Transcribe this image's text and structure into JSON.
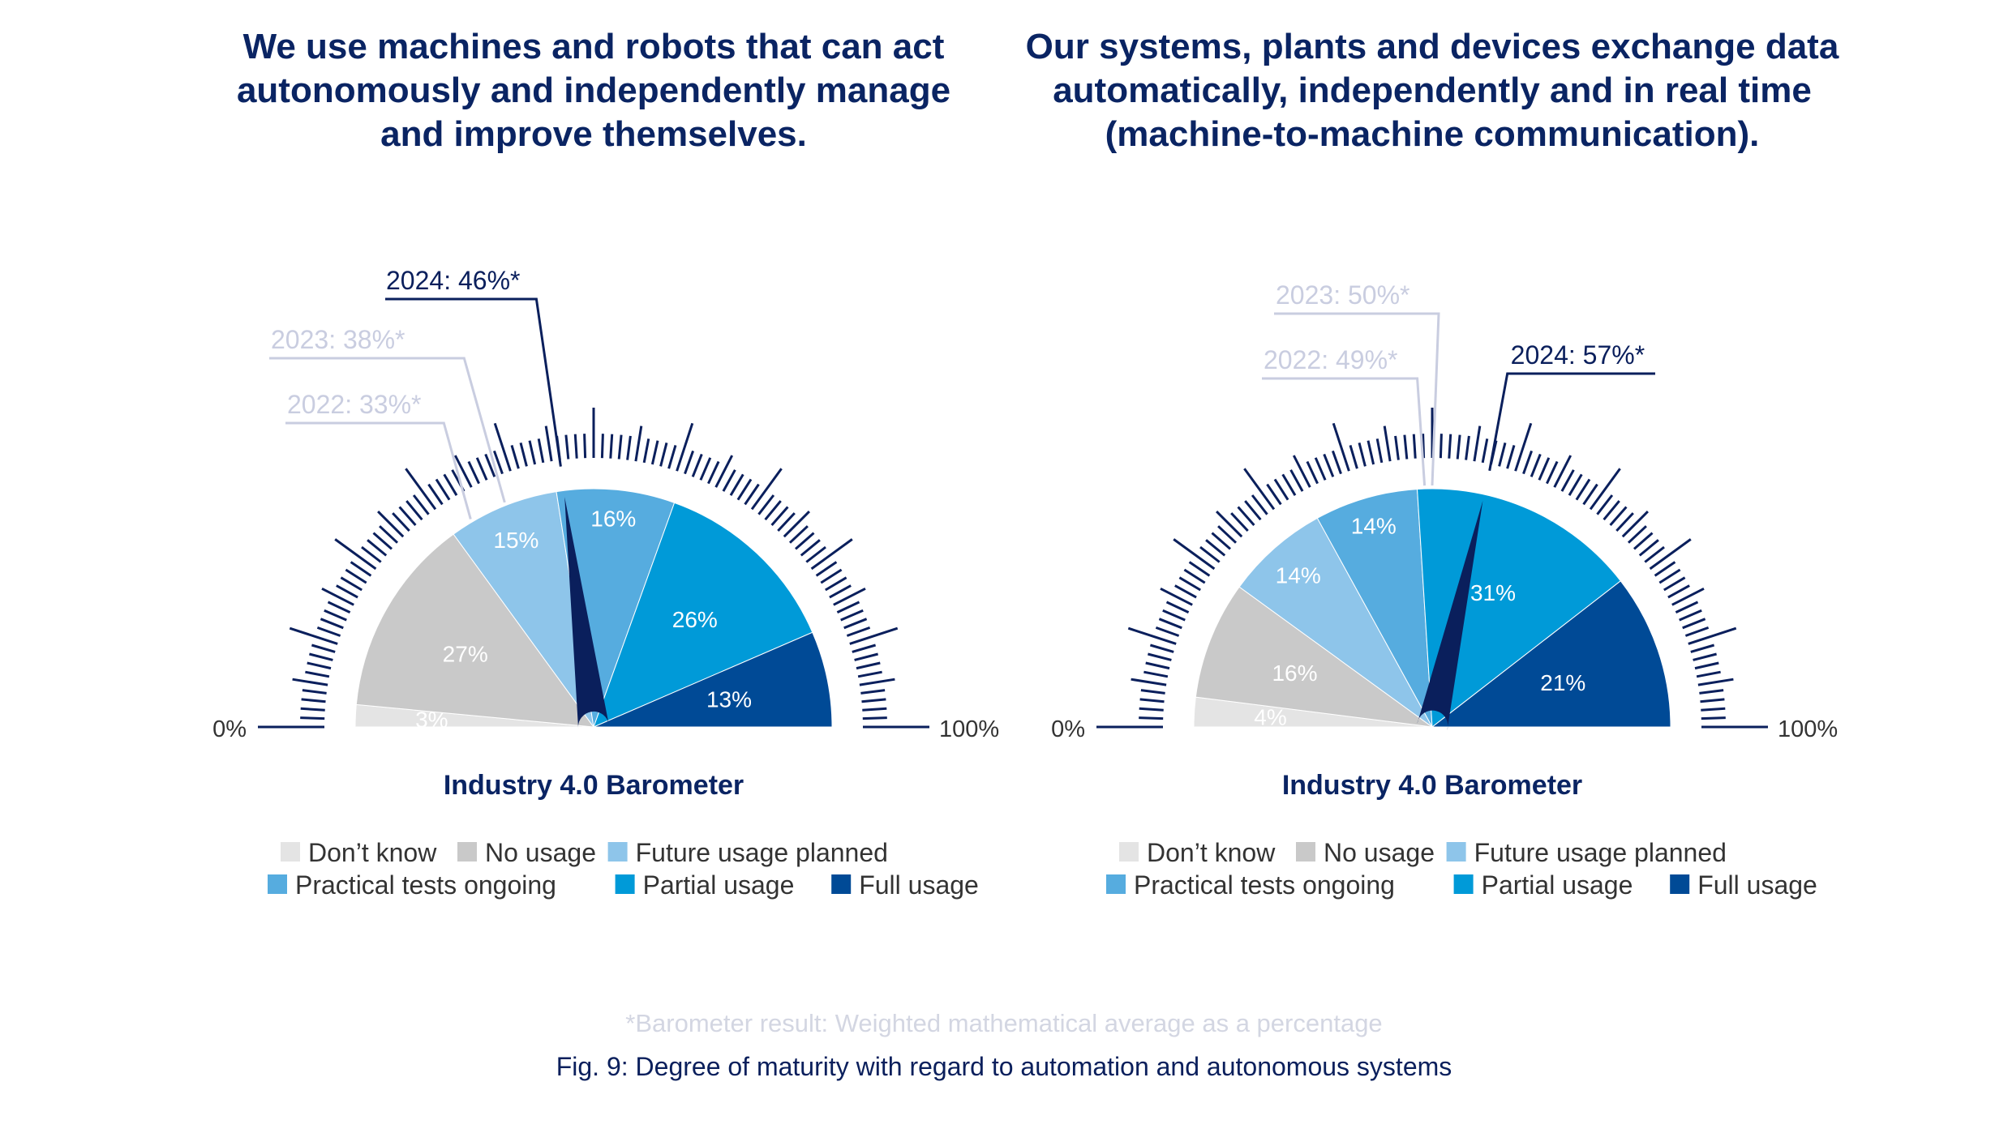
{
  "colors": {
    "title": "#0a2463",
    "needle": "#0a1f5c",
    "tick": "#0a1f5c",
    "prev_year": "#c9cde0",
    "axis_text": "#333333",
    "note": "#d3d6e2",
    "caption": "#0a1f5c",
    "segment_label_light": "#ffffff"
  },
  "legend_items": [
    {
      "label": "Don’t know",
      "color": "#e4e4e4"
    },
    {
      "label": "No usage",
      "color": "#c9c9c9"
    },
    {
      "label": "Future usage planned",
      "color": "#8ec5ea"
    },
    {
      "label": "Practical tests ongoing",
      "color": "#56acdf"
    },
    {
      "label": "Partial usage",
      "color": "#009ad8"
    },
    {
      "label": "Full usage",
      "color": "#004a96"
    }
  ],
  "axis": {
    "min_label": "0%",
    "max_label": "100%"
  },
  "gauge_title": "Industry 4.0 Barometer",
  "footnote": "*Barometer result: Weighted mathematical average as a percentage",
  "caption": "Fig. 9: Degree of maturity with regard to automation and autonomous systems",
  "chart_data": [
    {
      "type": "gauge",
      "title_lines": [
        "We use machines and robots that can act",
        "autonomously and independently manage",
        "and improve themselves."
      ],
      "categories": [
        "Don’t know",
        "No usage",
        "Future usage planned",
        "Practical tests ongoing",
        "Partial usage",
        "Full usage"
      ],
      "values": [
        3,
        27,
        15,
        16,
        26,
        13
      ],
      "value_labels": [
        "3%",
        "27%",
        "15%",
        "16%",
        "26%",
        "13%"
      ],
      "barometer": {
        "year": "2024",
        "value": 46,
        "label": "2024: 46%*"
      },
      "previous": [
        {
          "year": "2023",
          "value": 38,
          "label": "2023: 38%*"
        },
        {
          "year": "2022",
          "value": 33,
          "label": "2022: 33%*"
        }
      ]
    },
    {
      "type": "gauge",
      "title_lines": [
        "Our systems, plants and devices exchange data",
        "automatically, independently and in real time",
        "(machine-to-machine communication)."
      ],
      "categories": [
        "Don’t know",
        "No usage",
        "Future usage planned",
        "Practical tests ongoing",
        "Partial usage",
        "Full usage"
      ],
      "values": [
        4,
        16,
        14,
        14,
        31,
        21
      ],
      "value_labels": [
        "4%",
        "16%",
        "14%",
        "14%",
        "31%",
        "21%"
      ],
      "barometer": {
        "year": "2024",
        "value": 57,
        "label": "2024: 57%*"
      },
      "previous": [
        {
          "year": "2023",
          "value": 50,
          "label": "2023: 50%*"
        },
        {
          "year": "2022",
          "value": 49,
          "label": "2022: 49%*"
        }
      ]
    }
  ]
}
